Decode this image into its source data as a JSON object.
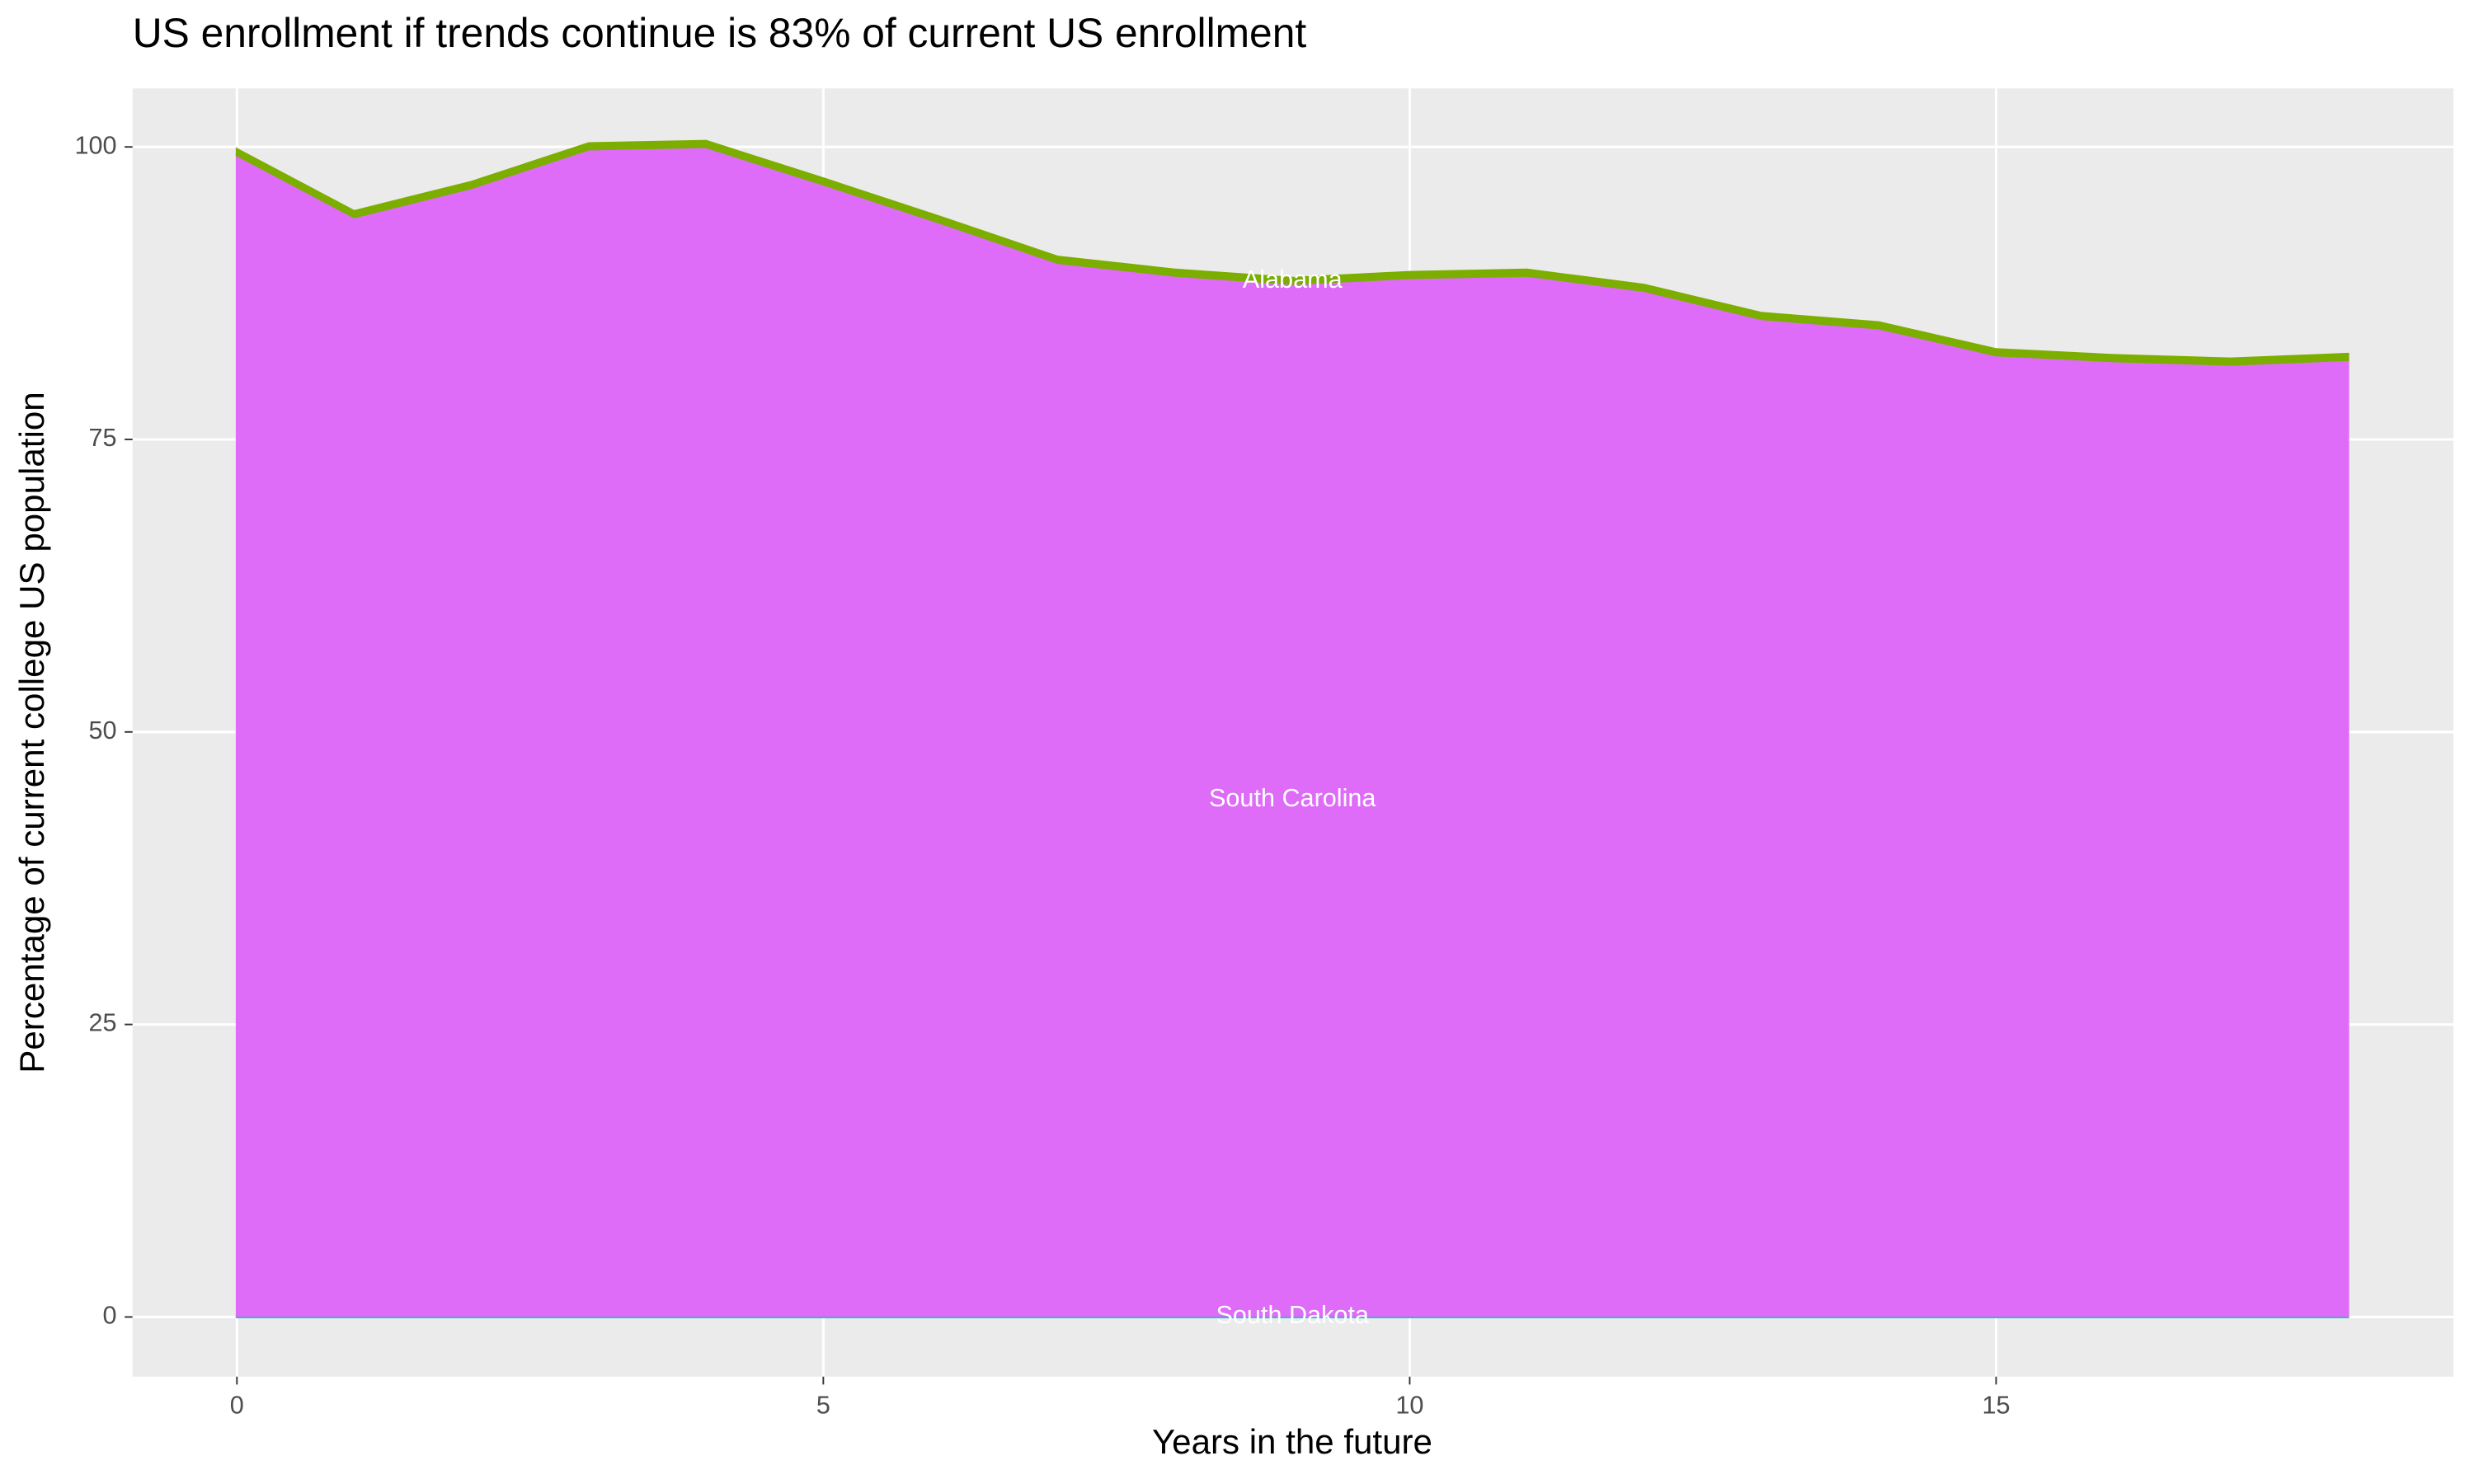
{
  "chart_data": {
    "type": "area",
    "title": "US enrollment if trends continue is 83% of current US enrollment",
    "x_label": "Years in the future",
    "y_label": "Percentage of current college US population",
    "x": [
      0,
      1,
      2,
      3,
      4,
      5,
      6,
      7,
      8,
      9,
      10,
      11,
      12,
      13,
      14,
      15,
      16,
      17,
      18
    ],
    "series": [
      {
        "name": "South Dakota",
        "color": "#00bfc4",
        "values": [
          0.1,
          0.1,
          0.1,
          0.1,
          0.1,
          0.1,
          0.1,
          0.1,
          0.1,
          0.1,
          0.1,
          0.1,
          0.1,
          0.1,
          0.1,
          0.1,
          0.1,
          0.1,
          0.1
        ]
      },
      {
        "name": "South Carolina",
        "color": "#de6cf8",
        "values": [
          99.2,
          93.9,
          96.4,
          99.7,
          99.9,
          96.7,
          93.4,
          90.0,
          88.9,
          88.2,
          88.7,
          88.9,
          87.6,
          85.2,
          84.4,
          82.1,
          81.6,
          81.3,
          81.7
        ]
      },
      {
        "name": "Alabama",
        "color": "#7cae00",
        "values": [
          0.5,
          0.5,
          0.5,
          0.5,
          0.5,
          0.5,
          0.5,
          0.5,
          0.5,
          0.5,
          0.5,
          0.5,
          0.5,
          0.5,
          0.5,
          0.5,
          0.5,
          0.5,
          0.5
        ]
      }
    ],
    "xlim": [
      -0.89,
      18.9
    ],
    "ylim": [
      -5.1,
      105
    ],
    "xticks": [
      0,
      5,
      10,
      15
    ],
    "yticks": [
      0,
      25,
      50,
      75,
      100
    ],
    "grid": true
  }
}
